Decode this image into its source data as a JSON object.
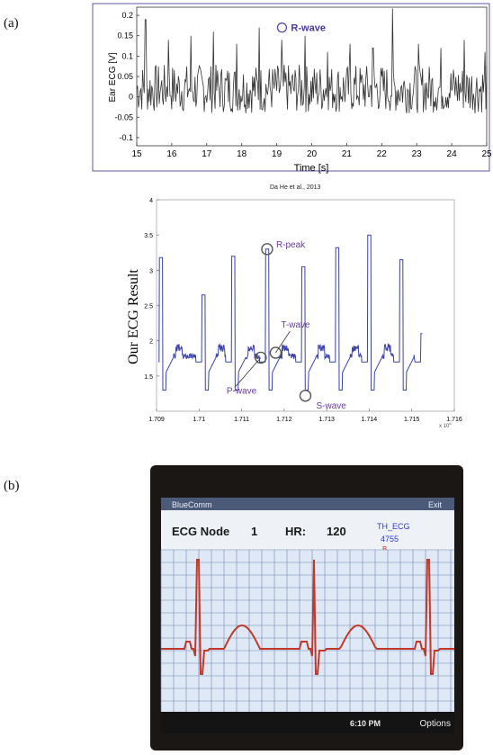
{
  "panel_labels": {
    "a": "(a)",
    "b": "(b)"
  },
  "chart_data": [
    {
      "type": "line",
      "title": "",
      "xlabel": "Time [s]",
      "ylabel": "Ear ECG [V]",
      "xlim": [
        15,
        25
      ],
      "ylim": [
        -0.12,
        0.22
      ],
      "xticks": [
        "15",
        "16",
        "17",
        "18",
        "19",
        "20",
        "21",
        "22",
        "23",
        "24",
        "25"
      ],
      "yticks": [
        "-0.1",
        "-0.05",
        "0",
        "0.05",
        "0.1",
        "0.15",
        "0.2"
      ],
      "series": [
        {
          "values_note_free": true,
          "r_peaks_x": [
            15.25,
            15.9,
            16.55,
            17.2,
            17.85,
            18.5,
            19.15,
            19.8,
            20.45,
            21.1,
            21.75,
            22.3,
            23.05,
            23.7,
            24.35,
            24.95
          ],
          "r_peaks_y": [
            0.19,
            0.14,
            0.15,
            0.16,
            0.13,
            0.17,
            0.14,
            0.15,
            0.11,
            0.13,
            0.12,
            0.22,
            0.13,
            0.12,
            0.14,
            0.11
          ]
        }
      ],
      "annotations": [
        {
          "text": "R-wave",
          "x": 19.15,
          "y": 0.14
        }
      ],
      "citation": "Da He et al., 2013"
    },
    {
      "type": "line",
      "title": "",
      "ylabel": "Our ECG Result",
      "xlim": [
        1.709,
        1.716
      ],
      "ylim": [
        1,
        4
      ],
      "xticks": [
        "1.709",
        "1.71",
        "1.711",
        "1.712",
        "1.713",
        "1.714",
        "1.715",
        "1.716"
      ],
      "yticks": [
        "1.5",
        "2",
        "2.5",
        "3",
        "3.5",
        "4"
      ],
      "x_multiplier": "x 10",
      "x_multiplier_exp": "6",
      "series": [
        {
          "r_peaks_x": [
            1.7091,
            1.7101,
            1.7108,
            1.7116,
            1.71245,
            1.71325,
            1.714,
            1.71475,
            1.71525
          ],
          "r_peaks_y": [
            3.18,
            2.65,
            3.2,
            3.3,
            3.05,
            3.32,
            3.5,
            3.15,
            2.1
          ]
        }
      ],
      "annotations": [
        {
          "text": "R-peak",
          "x": 1.7116,
          "y": 3.3
        },
        {
          "text": "T-wave",
          "x": 1.7118,
          "y": 1.83
        },
        {
          "text": "P-wave",
          "x": 1.71145,
          "y": 1.76
        },
        {
          "text": "S-wave",
          "x": 1.7125,
          "y": 1.22
        }
      ]
    }
  ],
  "phone": {
    "app_title": "BlueComm",
    "exit": "Exit",
    "node_label": "ECG Node",
    "node_value": "1",
    "hr_label": "HR:",
    "hr_value": "120",
    "device_line1": "TH_ECG",
    "device_line2": "4755",
    "device_line3": "B",
    "time": "6:10 PM",
    "options": "Options",
    "colors": {
      "trace": "#c0392b",
      "grid": "#6f85b0",
      "screen": "#dfe8f5",
      "header": "#4a5a78"
    }
  }
}
